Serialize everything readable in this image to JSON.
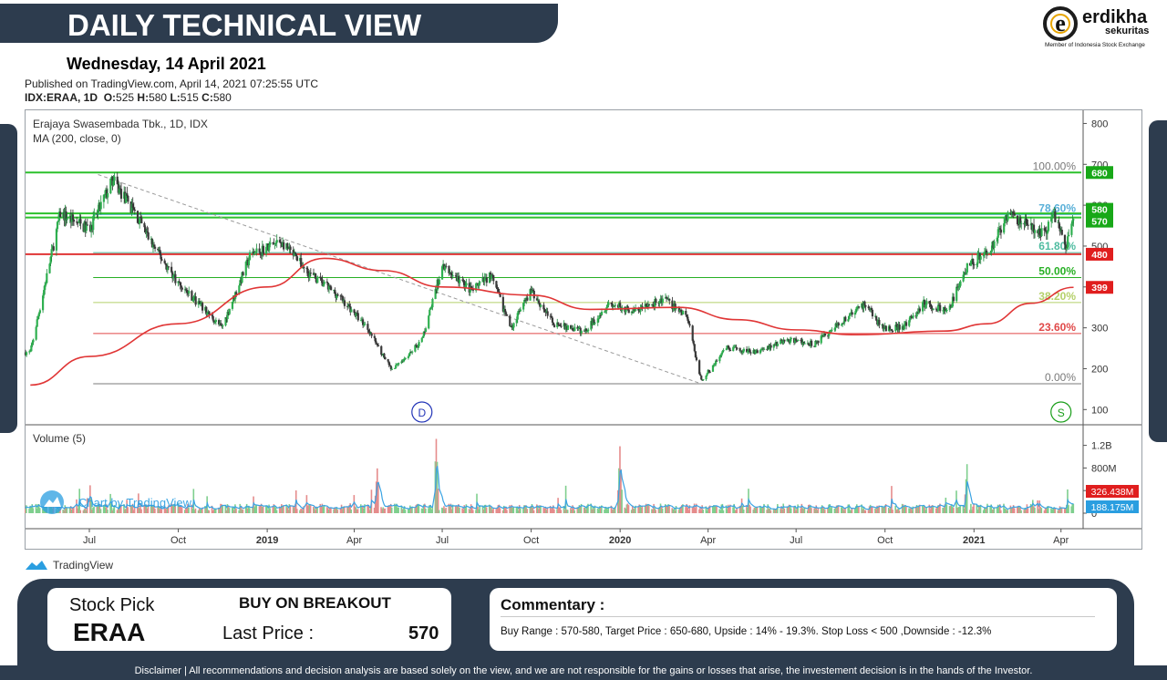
{
  "header": {
    "title": "DAILY TECHNICAL VIEW",
    "date": "Wednesday, 14 April 2021",
    "published": "Published on TradingView.com, April 14, 2021 07:25:55 UTC",
    "ohlc_prefix": "IDX:ERAA, 1D",
    "o_label": "O:",
    "o_value": "525",
    "h_label": "H:",
    "h_value": "580",
    "l_label": "L:",
    "l_value": "515",
    "c_label": "C:",
    "c_value": "580"
  },
  "logo": {
    "letter": "e",
    "name": "erdikha",
    "sub": "sekuritas",
    "member": "Member of Indonesia Stock Exchange"
  },
  "chart_data": {
    "type": "line",
    "title": "Erajaya Swasembada Tbk., 1D, IDX",
    "indicator": "MA (200, close, 0)",
    "volume_label": "Volume (5)",
    "watermark": "Chart by TradingView",
    "x_ticks": [
      "Jul",
      "Oct",
      "2019",
      "Apr",
      "Jul",
      "Oct",
      "2020",
      "Apr",
      "Jul",
      "Oct",
      "2021",
      "Apr"
    ],
    "x_tick_bold": [
      false,
      false,
      true,
      false,
      false,
      false,
      true,
      false,
      false,
      false,
      true,
      false
    ],
    "y_ticks": [
      "800",
      "700",
      "600",
      "500",
      "400",
      "300",
      "200",
      "100"
    ],
    "ylim": [
      65,
      830
    ],
    "volume_ticks": [
      "1.2B",
      "800M",
      "400M",
      "0"
    ],
    "price_anchors": [
      {
        "x": "2018-05-01",
        "y": 240
      },
      {
        "x": "2018-06-01",
        "y": 580
      },
      {
        "x": "2018-07-01",
        "y": 540
      },
      {
        "x": "2018-07-25",
        "y": 660
      },
      {
        "x": "2018-08-15",
        "y": 590
      },
      {
        "x": "2018-09-05",
        "y": 500
      },
      {
        "x": "2018-10-01",
        "y": 410
      },
      {
        "x": "2018-11-15",
        "y": 300
      },
      {
        "x": "2018-12-15",
        "y": 480
      },
      {
        "x": "2019-01-15",
        "y": 510
      },
      {
        "x": "2019-02-15",
        "y": 430
      },
      {
        "x": "2019-03-15",
        "y": 380
      },
      {
        "x": "2019-04-15",
        "y": 300
      },
      {
        "x": "2019-05-10",
        "y": 195
      },
      {
        "x": "2019-06-10",
        "y": 270
      },
      {
        "x": "2019-07-01",
        "y": 450
      },
      {
        "x": "2019-08-01",
        "y": 390
      },
      {
        "x": "2019-08-20",
        "y": 430
      },
      {
        "x": "2019-09-10",
        "y": 300
      },
      {
        "x": "2019-10-01",
        "y": 390
      },
      {
        "x": "2019-10-25",
        "y": 310
      },
      {
        "x": "2019-11-25",
        "y": 290
      },
      {
        "x": "2019-12-20",
        "y": 360
      },
      {
        "x": "2020-01-15",
        "y": 340
      },
      {
        "x": "2020-02-15",
        "y": 370
      },
      {
        "x": "2020-03-10",
        "y": 330
      },
      {
        "x": "2020-03-25",
        "y": 170
      },
      {
        "x": "2020-04-20",
        "y": 250
      },
      {
        "x": "2020-05-20",
        "y": 240
      },
      {
        "x": "2020-06-20",
        "y": 270
      },
      {
        "x": "2020-07-20",
        "y": 260
      },
      {
        "x": "2020-08-20",
        "y": 320
      },
      {
        "x": "2020-09-10",
        "y": 360
      },
      {
        "x": "2020-09-28",
        "y": 300
      },
      {
        "x": "2020-10-20",
        "y": 300
      },
      {
        "x": "2020-11-10",
        "y": 360
      },
      {
        "x": "2020-12-05",
        "y": 340
      },
      {
        "x": "2020-12-25",
        "y": 450
      },
      {
        "x": "2021-01-20",
        "y": 500
      },
      {
        "x": "2021-02-05",
        "y": 580
      },
      {
        "x": "2021-02-25",
        "y": 550
      },
      {
        "x": "2021-03-15",
        "y": 530
      },
      {
        "x": "2021-03-25",
        "y": 580
      },
      {
        "x": "2021-04-07",
        "y": 500
      },
      {
        "x": "2021-04-14",
        "y": 580
      }
    ],
    "ma_anchors": [
      {
        "x": "2018-05-01",
        "y": 160
      },
      {
        "x": "2018-07-01",
        "y": 230
      },
      {
        "x": "2018-10-01",
        "y": 310
      },
      {
        "x": "2019-01-01",
        "y": 400
      },
      {
        "x": "2019-03-01",
        "y": 470
      },
      {
        "x": "2019-05-01",
        "y": 440
      },
      {
        "x": "2019-07-01",
        "y": 400
      },
      {
        "x": "2019-10-01",
        "y": 380
      },
      {
        "x": "2019-12-01",
        "y": 345
      },
      {
        "x": "2020-03-01",
        "y": 350
      },
      {
        "x": "2020-05-01",
        "y": 320
      },
      {
        "x": "2020-07-01",
        "y": 295
      },
      {
        "x": "2020-09-01",
        "y": 283
      },
      {
        "x": "2020-12-01",
        "y": 292
      },
      {
        "x": "2021-01-15",
        "y": 310
      },
      {
        "x": "2021-03-01",
        "y": 360
      },
      {
        "x": "2021-04-14",
        "y": 399
      }
    ],
    "volume_peaks": [
      {
        "x": "2018-07-01",
        "v": 0.72
      },
      {
        "x": "2019-04-25",
        "v": 0.78
      },
      {
        "x": "2019-06-25",
        "v": 1.3
      },
      {
        "x": "2020-01-01",
        "v": 1.15
      },
      {
        "x": "2020-12-25",
        "v": 0.85
      }
    ],
    "fib_levels": [
      {
        "label": "100.00%",
        "value": 680,
        "color": "#7a7a7a"
      },
      {
        "label": "78.60%",
        "value": 577,
        "color": "#59b0d8"
      },
      {
        "label": "61.80%",
        "value": 484,
        "color": "#4fbca0"
      },
      {
        "label": "50.00%",
        "value": 423,
        "color": "#27b024"
      },
      {
        "label": "38.20%",
        "value": 362,
        "color": "#b5d06a"
      },
      {
        "label": "23.60%",
        "value": 286,
        "color": "#e04848"
      },
      {
        "label": "0.00%",
        "value": 163,
        "color": "#7a7a7a"
      }
    ],
    "horizontal_lines": [
      {
        "value": 680,
        "color": "#2cc12c"
      },
      {
        "value": 580,
        "color": "#2cc12c"
      },
      {
        "value": 570,
        "color": "#2cc12c"
      },
      {
        "value": 480,
        "color": "#e03535"
      }
    ],
    "trendline": [
      {
        "x": "2018-07-10",
        "y": 675
      },
      {
        "x": "2020-03-25",
        "y": 163
      }
    ],
    "price_tags": [
      {
        "label": "680",
        "value": 680,
        "color": "#18a818"
      },
      {
        "label": "580",
        "value": 590,
        "color": "#18a818"
      },
      {
        "label": "570",
        "value": 561,
        "color": "#18a818"
      },
      {
        "label": "480",
        "value": 480,
        "color": "#e01e1e"
      },
      {
        "label": "399",
        "value": 399,
        "color": "#e01e1e"
      }
    ],
    "volume_tags": [
      {
        "label": "326.438M",
        "color": "#e01e1e"
      },
      {
        "label": "188.175M",
        "color": "#2a9ee0"
      }
    ],
    "markers": [
      {
        "x": "2019-06-10",
        "letter": "D",
        "color": "#2436b8"
      },
      {
        "x": "2021-04-01",
        "letter": "S",
        "color": "#1a9e1a"
      }
    ]
  },
  "tradingview_footer": "TradingView",
  "stock_pick": {
    "label": "Stock Pick",
    "ticker": "ERAA",
    "action": "BUY ON BREAKOUT",
    "last_price_label": "Last Price :",
    "last_price": "570"
  },
  "commentary": {
    "title": "Commentary :",
    "text": "Buy Range : 570-580, Target Price : 650-680, Upside : 14% - 19.3%. Stop Loss < 500 ,Downside : -12.3%"
  },
  "disclaimer": "Disclaimer | All recommendations and decision analysis are based solely on the view, and we are not responsible for the gains or losses that arise, the investement decision is in the hands of the Investor."
}
